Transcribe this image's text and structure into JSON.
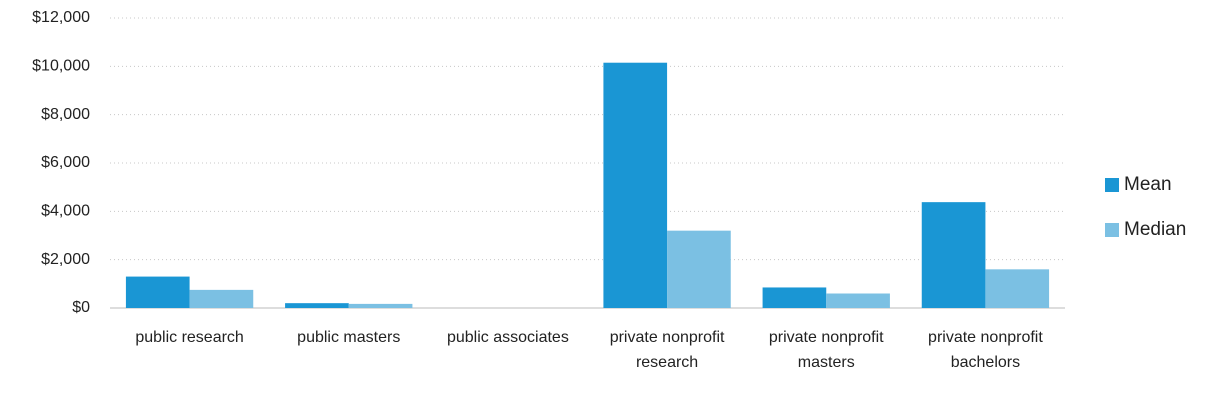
{
  "chart_data": {
    "type": "bar",
    "categories": [
      "public research",
      "public masters",
      "public associates",
      "private nonprofit research",
      "private nonprofit masters",
      "private nonprofit bachelors"
    ],
    "series": [
      {
        "name": "Mean",
        "color": "#1a96d4",
        "values": [
          1300,
          200,
          0,
          10150,
          850,
          4380
        ]
      },
      {
        "name": "Median",
        "color": "#7bc0e3",
        "values": [
          750,
          170,
          0,
          3200,
          600,
          1600
        ]
      }
    ],
    "ylim": [
      0,
      12000
    ],
    "yticks": [
      {
        "value": 0,
        "label": "$0"
      },
      {
        "value": 2000,
        "label": "$2,000"
      },
      {
        "value": 4000,
        "label": "$4,000"
      },
      {
        "value": 6000,
        "label": "$6,000"
      },
      {
        "value": 8000,
        "label": "$8,000"
      },
      {
        "value": 10000,
        "label": "$10,000"
      },
      {
        "value": 12000,
        "label": "$12,000"
      }
    ],
    "grid": true,
    "legend": "right"
  }
}
